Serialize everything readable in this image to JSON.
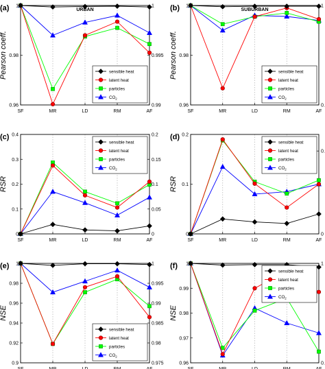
{
  "figure": {
    "series_style": [
      {
        "name": "sensible heat",
        "color": "#000000",
        "marker": "diamond"
      },
      {
        "name": "latent heat",
        "color": "#ff0000",
        "marker": "circle"
      },
      {
        "name": "particles",
        "color": "#00ff00",
        "marker": "square"
      },
      {
        "name": "CO2",
        "color": "#0000ff",
        "marker": "triangle"
      }
    ]
  },
  "chart_data": [
    {
      "id": "a",
      "panel_label": "(a)",
      "title": "URBAN",
      "type": "line",
      "categories": [
        "SF",
        "MR",
        "LD",
        "RM",
        "AF"
      ],
      "ylabel": "Pearson coeff.",
      "left_axis": {
        "ylim": [
          0.96,
          1.0
        ],
        "ticks": [
          {
            "v": 0.96,
            "t": "0.96"
          },
          {
            "v": 0.98,
            "t": "0.98"
          },
          {
            "v": 1.0,
            "t": "1"
          }
        ]
      },
      "right_axis": {
        "ylim": [
          0.99,
          1.0
        ],
        "ticks": [
          {
            "v": 0.99,
            "t": "0.99"
          },
          {
            "v": 0.995,
            "t": "0.995"
          },
          {
            "v": 1.0,
            "t": "1"
          }
        ]
      },
      "legend_position": "bottom-right",
      "series": [
        {
          "name": "sensible heat",
          "axis": "right",
          "values": [
            1.0,
            0.99985,
            0.9999,
            0.99993,
            0.99985
          ]
        },
        {
          "name": "latent heat",
          "axis": "left",
          "values": [
            1.0,
            0.9603,
            0.988,
            0.9935,
            0.981
          ]
        },
        {
          "name": "particles",
          "axis": "left",
          "values": [
            1.0,
            0.9664,
            0.9875,
            0.991,
            0.9845
          ]
        },
        {
          "name": "CO2",
          "axis": "left",
          "values": [
            1.0,
            0.988,
            0.9932,
            0.996,
            0.989
          ]
        }
      ]
    },
    {
      "id": "b",
      "panel_label": "(b)",
      "title": "SUBURBAN",
      "type": "line",
      "categories": [
        "SF",
        "MR",
        "LD",
        "RM",
        "AF"
      ],
      "ylabel": "Pearson coeff.",
      "left_axis": {
        "ylim": [
          0.96,
          1.0
        ],
        "ticks": [
          {
            "v": 0.96,
            "t": "0.96"
          },
          {
            "v": 0.98,
            "t": "0.98"
          },
          {
            "v": 1.0,
            "t": "1"
          }
        ]
      },
      "right_axis": {
        "ylim": [
          0.6,
          1.0
        ],
        "ticks": [
          {
            "v": 0.6,
            "t": "0.6"
          },
          {
            "v": 1.0,
            "t": "1"
          }
        ]
      },
      "legend_position": "bottom-right",
      "series": [
        {
          "name": "sensible heat",
          "axis": "left",
          "values": [
            1.0,
            0.9995,
            0.9997,
            0.9997,
            0.9997
          ]
        },
        {
          "name": "latent heat",
          "axis": "right",
          "values": [
            1.0,
            0.667,
            0.955,
            0.99,
            0.945
          ]
        },
        {
          "name": "particles",
          "axis": "right",
          "values": [
            1.0,
            0.925,
            0.955,
            0.97,
            0.935
          ]
        },
        {
          "name": "CO2",
          "axis": "right",
          "values": [
            1.0,
            0.9,
            0.96,
            0.956,
            0.94
          ]
        }
      ]
    },
    {
      "id": "c",
      "panel_label": "(c)",
      "type": "line",
      "categories": [
        "SF",
        "MR",
        "LD",
        "RM",
        "AF"
      ],
      "ylabel": "RSR",
      "left_axis": {
        "ylim": [
          0,
          0.4
        ],
        "ticks": [
          {
            "v": 0,
            "t": "0"
          },
          {
            "v": 0.1,
            "t": "0.1"
          },
          {
            "v": 0.2,
            "t": "0.2"
          },
          {
            "v": 0.3,
            "t": "0.3"
          },
          {
            "v": 0.4,
            "t": "0.4"
          }
        ]
      },
      "right_axis": {
        "ylim": [
          0,
          0.2
        ],
        "ticks": [
          {
            "v": 0,
            "t": "0"
          },
          {
            "v": 0.05,
            "t": "0.05"
          },
          {
            "v": 0.1,
            "t": "0.1"
          },
          {
            "v": 0.15,
            "t": "0.15"
          },
          {
            "v": 0.2,
            "t": "0.2"
          }
        ]
      },
      "legend_position": "top-right",
      "series": [
        {
          "name": "sensible heat",
          "axis": "right",
          "values": [
            0,
            0.019,
            0.008,
            0.006,
            0.016
          ]
        },
        {
          "name": "latent heat",
          "axis": "left",
          "values": [
            0,
            0.275,
            0.155,
            0.106,
            0.21
          ]
        },
        {
          "name": "particles",
          "axis": "left",
          "values": [
            0,
            0.287,
            0.17,
            0.123,
            0.198
          ]
        },
        {
          "name": "CO2",
          "axis": "left",
          "values": [
            0,
            0.17,
            0.125,
            0.075,
            0.147
          ]
        }
      ]
    },
    {
      "id": "d",
      "panel_label": "(d)",
      "type": "line",
      "categories": [
        "SF",
        "MR",
        "LD",
        "RM",
        "AF"
      ],
      "ylabel": "RSR",
      "left_axis": {
        "ylim": [
          0,
          0.2
        ],
        "ticks": [
          {
            "v": 0,
            "t": "0"
          },
          {
            "v": 0.1,
            "t": "0.1"
          },
          {
            "v": 0.2,
            "t": "0.2"
          }
        ]
      },
      "right_axis": {
        "ylim": [
          0,
          0.6
        ],
        "ticks": [
          {
            "v": 0,
            "t": "0"
          },
          {
            "v": 0.5,
            "t": "0.5"
          }
        ]
      },
      "legend_position": "top-right",
      "series": [
        {
          "name": "sensible heat",
          "axis": "left",
          "values": [
            0,
            0.03,
            0.024,
            0.021,
            0.04
          ]
        },
        {
          "name": "latent heat",
          "axis": "left",
          "values": [
            0,
            0.19,
            0.101,
            0.053,
            0.1
          ]
        },
        {
          "name": "particles",
          "axis": "left",
          "values": [
            0,
            0.188,
            0.105,
            0.081,
            0.108
          ]
        },
        {
          "name": "CO2",
          "axis": "left",
          "values": [
            0,
            0.135,
            0.08,
            0.085,
            0.1
          ]
        }
      ]
    },
    {
      "id": "e",
      "panel_label": "(e)",
      "type": "line",
      "categories": [
        "SF",
        "MR",
        "LD",
        "RM",
        "AF"
      ],
      "ylabel": "NSE",
      "left_axis": {
        "ylim": [
          0.9,
          1.0
        ],
        "ticks": [
          {
            "v": 0.9,
            "t": "0.9"
          },
          {
            "v": 0.92,
            "t": "0.92"
          },
          {
            "v": 0.94,
            "t": "0.94"
          },
          {
            "v": 0.96,
            "t": "0.96"
          },
          {
            "v": 0.98,
            "t": "0.98"
          },
          {
            "v": 1.0,
            "t": "1"
          }
        ]
      },
      "right_axis": {
        "ylim": [
          0.975,
          1.0
        ],
        "ticks": [
          {
            "v": 0.975,
            "t": "0.975"
          },
          {
            "v": 0.98,
            "t": "0.98"
          },
          {
            "v": 0.985,
            "t": "0.985"
          },
          {
            "v": 0.99,
            "t": "0.99"
          },
          {
            "v": 0.995,
            "t": "0.995"
          },
          {
            "v": 1.0,
            "t": "1"
          }
        ]
      },
      "legend_position": "bottom-right",
      "series": [
        {
          "name": "sensible heat",
          "axis": "right",
          "values": [
            1.0,
            0.9995,
            0.9999,
            0.9999,
            0.9997
          ]
        },
        {
          "name": "latent heat",
          "axis": "left",
          "values": [
            1.0,
            0.919,
            0.976,
            0.987,
            0.946
          ]
        },
        {
          "name": "particles",
          "axis": "left",
          "values": [
            1.0,
            0.919,
            0.971,
            0.984,
            0.957
          ]
        },
        {
          "name": "CO2",
          "axis": "left",
          "values": [
            1.0,
            0.971,
            0.982,
            0.993,
            0.976
          ]
        }
      ]
    },
    {
      "id": "f",
      "panel_label": "(f)",
      "type": "line",
      "categories": [
        "SF",
        "MR",
        "LD",
        "RM",
        "AF"
      ],
      "ylabel": "NSE",
      "left_axis": {
        "ylim": [
          0.96,
          1.0
        ],
        "ticks": [
          {
            "v": 0.96,
            "t": "0.96"
          },
          {
            "v": 0.97,
            "t": "0.97"
          },
          {
            "v": 0.98,
            "t": "0.98"
          },
          {
            "v": 0.99,
            "t": "0.99"
          },
          {
            "v": 1.0,
            "t": "1"
          }
        ]
      },
      "right_axis": {
        "ylim": [
          0.6,
          1.0
        ],
        "ticks": [
          {
            "v": 0.6,
            "t": "0.6"
          },
          {
            "v": 1.0,
            "t": "1"
          }
        ]
      },
      "legend_position": "top-right",
      "series": [
        {
          "name": "sensible heat",
          "axis": "left",
          "values": [
            1.0,
            0.9993,
            0.9995,
            0.9995,
            0.9985
          ]
        },
        {
          "name": "latent heat",
          "axis": "left",
          "values": [
            1.0,
            0.9635,
            0.99,
            0.997,
            0.9885
          ]
        },
        {
          "name": "particles",
          "axis": "left",
          "values": [
            1.0,
            0.966,
            0.981,
            0.986,
            0.9645
          ]
        },
        {
          "name": "CO2",
          "axis": "left",
          "values": [
            1.0,
            0.963,
            0.982,
            0.976,
            0.972
          ]
        }
      ]
    }
  ]
}
